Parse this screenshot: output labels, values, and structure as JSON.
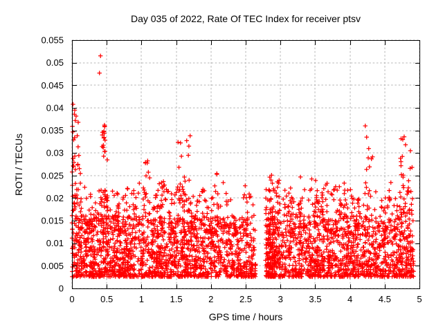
{
  "chart_data": {
    "type": "scatter",
    "title": "Day 035 of 2022, Rate Of TEC Index for receiver ptsv",
    "xlabel": "GPS time / hours",
    "ylabel": "ROTI / TECUs",
    "xlim": [
      0,
      5
    ],
    "ylim": [
      0,
      0.055
    ],
    "xticks": [
      0,
      0.5,
      1,
      1.5,
      2,
      2.5,
      3,
      3.5,
      4,
      4.5,
      5
    ],
    "xtick_labels": [
      "0",
      "0.5",
      "1",
      "1.5",
      "2",
      "2.5",
      "3",
      "3.5",
      "4",
      "4.5",
      "5"
    ],
    "yticks": [
      0,
      0.005,
      0.01,
      0.015,
      0.02,
      0.025,
      0.03,
      0.035,
      0.04,
      0.045,
      0.05,
      0.055
    ],
    "ytick_labels": [
      "0",
      "0.005",
      "0.01",
      "0.015",
      "0.02",
      "0.025",
      "0.03",
      "0.035",
      "0.04",
      "0.045",
      "0.05",
      "0.055"
    ],
    "grid": true,
    "legend": null,
    "marker": "plus",
    "marker_color": "#ff0000",
    "grid_color": "#b3b3b3",
    "axis_color": "#000000",
    "background_color": "#ffffff",
    "x_data_range": [
      0,
      4.92
    ],
    "y_data_range": [
      0.0025,
      0.0515
    ],
    "data_gap_x": [
      2.645,
      2.785
    ],
    "notable_points": [
      [
        0.41,
        0.0515
      ],
      [
        0.395,
        0.0477
      ],
      [
        0.015,
        0.0408
      ],
      [
        0.04,
        0.0395
      ],
      [
        0.09,
        0.0368
      ],
      [
        0.47,
        0.0358
      ],
      [
        0.46,
        0.0348
      ],
      [
        1.7,
        0.0338
      ],
      [
        2.83,
        0.0166
      ],
      [
        2.85,
        0.0175
      ],
      [
        4.22,
        0.036
      ],
      [
        4.24,
        0.0335
      ],
      [
        4.27,
        0.031
      ],
      [
        4.31,
        0.0287
      ],
      [
        4.78,
        0.0336
      ],
      [
        4.76,
        0.033
      ],
      [
        4.8,
        0.0318
      ],
      [
        4.87,
        0.0305
      ]
    ],
    "density_model": {
      "seed": 2022035,
      "bands": [
        {
          "n": 2200,
          "y0": 0.0026,
          "y1": 0.016,
          "pow": 2.0
        },
        {
          "n": 800,
          "y0": 0.005,
          "y1": 0.022,
          "pow": 1.6
        },
        {
          "n": 200,
          "y0": 0.012,
          "y1": 0.0235,
          "pow": 1.2
        }
      ],
      "sparse_regions": [
        {
          "x0": 2.12,
          "x1": 2.645,
          "keep": 0.6
        },
        {
          "x0": 4.35,
          "x1": 4.62,
          "keep": 0.8
        }
      ],
      "clusters": [
        {
          "x": 0.03,
          "sx": 0.03,
          "n": 24,
          "y0": 0.016,
          "y1": 0.0405
        },
        {
          "x": 0.1,
          "sx": 0.04,
          "n": 16,
          "y0": 0.015,
          "y1": 0.0368
        },
        {
          "x": 0.22,
          "sx": 0.05,
          "n": 10,
          "y0": 0.013,
          "y1": 0.0225
        },
        {
          "x": 0.35,
          "sx": 0.04,
          "n": 8,
          "y0": 0.012,
          "y1": 0.02
        },
        {
          "x": 0.46,
          "sx": 0.025,
          "n": 14,
          "y0": 0.03,
          "y1": 0.0362
        },
        {
          "x": 0.5,
          "sx": 0.06,
          "n": 18,
          "y0": 0.015,
          "y1": 0.0295
        },
        {
          "x": 0.63,
          "sx": 0.05,
          "n": 12,
          "y0": 0.012,
          "y1": 0.0265
        },
        {
          "x": 0.78,
          "sx": 0.05,
          "n": 10,
          "y0": 0.011,
          "y1": 0.021
        },
        {
          "x": 0.93,
          "sx": 0.05,
          "n": 12,
          "y0": 0.013,
          "y1": 0.0242
        },
        {
          "x": 1.08,
          "sx": 0.06,
          "n": 14,
          "y0": 0.012,
          "y1": 0.0285
        },
        {
          "x": 1.22,
          "sx": 0.05,
          "n": 10,
          "y0": 0.012,
          "y1": 0.0225
        },
        {
          "x": 1.31,
          "sx": 0.03,
          "n": 8,
          "y0": 0.019,
          "y1": 0.0245
        },
        {
          "x": 1.44,
          "sx": 0.04,
          "n": 8,
          "y0": 0.011,
          "y1": 0.019
        },
        {
          "x": 1.57,
          "sx": 0.05,
          "n": 16,
          "y0": 0.015,
          "y1": 0.0325
        },
        {
          "x": 1.65,
          "sx": 0.04,
          "n": 12,
          "y0": 0.017,
          "y1": 0.0338
        },
        {
          "x": 1.78,
          "sx": 0.04,
          "n": 8,
          "y0": 0.011,
          "y1": 0.0195
        },
        {
          "x": 1.93,
          "sx": 0.05,
          "n": 8,
          "y0": 0.011,
          "y1": 0.0185
        },
        {
          "x": 2.07,
          "sx": 0.05,
          "n": 10,
          "y0": 0.012,
          "y1": 0.0258
        },
        {
          "x": 2.3,
          "sx": 0.06,
          "n": 8,
          "y0": 0.009,
          "y1": 0.0165
        },
        {
          "x": 2.5,
          "sx": 0.05,
          "n": 8,
          "y0": 0.009,
          "y1": 0.016
        },
        {
          "x": 2.88,
          "sx": 0.04,
          "n": 16,
          "y0": 0.013,
          "y1": 0.0252
        },
        {
          "x": 2.97,
          "sx": 0.03,
          "n": 10,
          "y0": 0.016,
          "y1": 0.0248
        },
        {
          "x": 3.1,
          "sx": 0.05,
          "n": 10,
          "y0": 0.011,
          "y1": 0.0225
        },
        {
          "x": 3.3,
          "sx": 0.05,
          "n": 10,
          "y0": 0.012,
          "y1": 0.0248
        },
        {
          "x": 3.5,
          "sx": 0.06,
          "n": 18,
          "y0": 0.014,
          "y1": 0.0278
        },
        {
          "x": 3.62,
          "sx": 0.04,
          "n": 10,
          "y0": 0.014,
          "y1": 0.026
        },
        {
          "x": 3.78,
          "sx": 0.05,
          "n": 8,
          "y0": 0.011,
          "y1": 0.0205
        },
        {
          "x": 3.93,
          "sx": 0.05,
          "n": 8,
          "y0": 0.011,
          "y1": 0.0215
        },
        {
          "x": 4.1,
          "sx": 0.05,
          "n": 8,
          "y0": 0.011,
          "y1": 0.0205
        },
        {
          "x": 4.27,
          "sx": 0.06,
          "n": 12,
          "y0": 0.015,
          "y1": 0.03
        },
        {
          "x": 4.5,
          "sx": 0.05,
          "n": 8,
          "y0": 0.011,
          "y1": 0.0205
        },
        {
          "x": 4.75,
          "sx": 0.035,
          "n": 14,
          "y0": 0.016,
          "y1": 0.0332
        },
        {
          "x": 4.87,
          "sx": 0.03,
          "n": 8,
          "y0": 0.013,
          "y1": 0.0307
        }
      ]
    }
  }
}
